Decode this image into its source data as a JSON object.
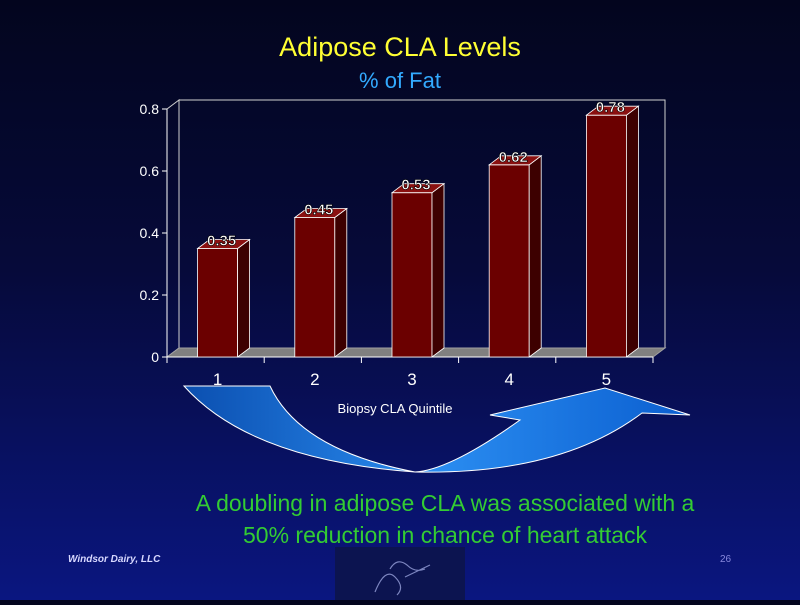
{
  "slide": {
    "title": "Adipose CLA Levels",
    "subtitle": "% of Fat",
    "caption_line1": "A doubling in adipose CLA was associated with a",
    "caption_line2": "50% reduction in chance of heart attack",
    "footer_left": "Windsor Dairy, LLC",
    "page_number": "26",
    "logo_icon": "figure-sketch-logo-icon"
  },
  "chart_data": {
    "type": "bar",
    "categories": [
      "1",
      "2",
      "3",
      "4",
      "5"
    ],
    "values": [
      0.35,
      0.45,
      0.53,
      0.62,
      0.78
    ],
    "data_labels": [
      "0.35",
      "0.45",
      "0.53",
      "0.62",
      "0.78"
    ],
    "title": "",
    "xlabel": "Biopsy CLA Quintile",
    "ylabel": "",
    "ylim": [
      0,
      0.8
    ],
    "yticks": [
      0,
      0.2,
      0.4,
      0.6,
      0.8
    ],
    "ytick_labels": [
      "0",
      "0.2",
      "0.4",
      "0.6",
      "0.8"
    ],
    "grid": false,
    "legend": "none",
    "three_d": true,
    "colors": {
      "bar": "#6b0000",
      "bar_side": "#3d0000",
      "bar_top": "#8a1010",
      "floor": "#808080",
      "arrow": "#1e7fe0"
    }
  }
}
